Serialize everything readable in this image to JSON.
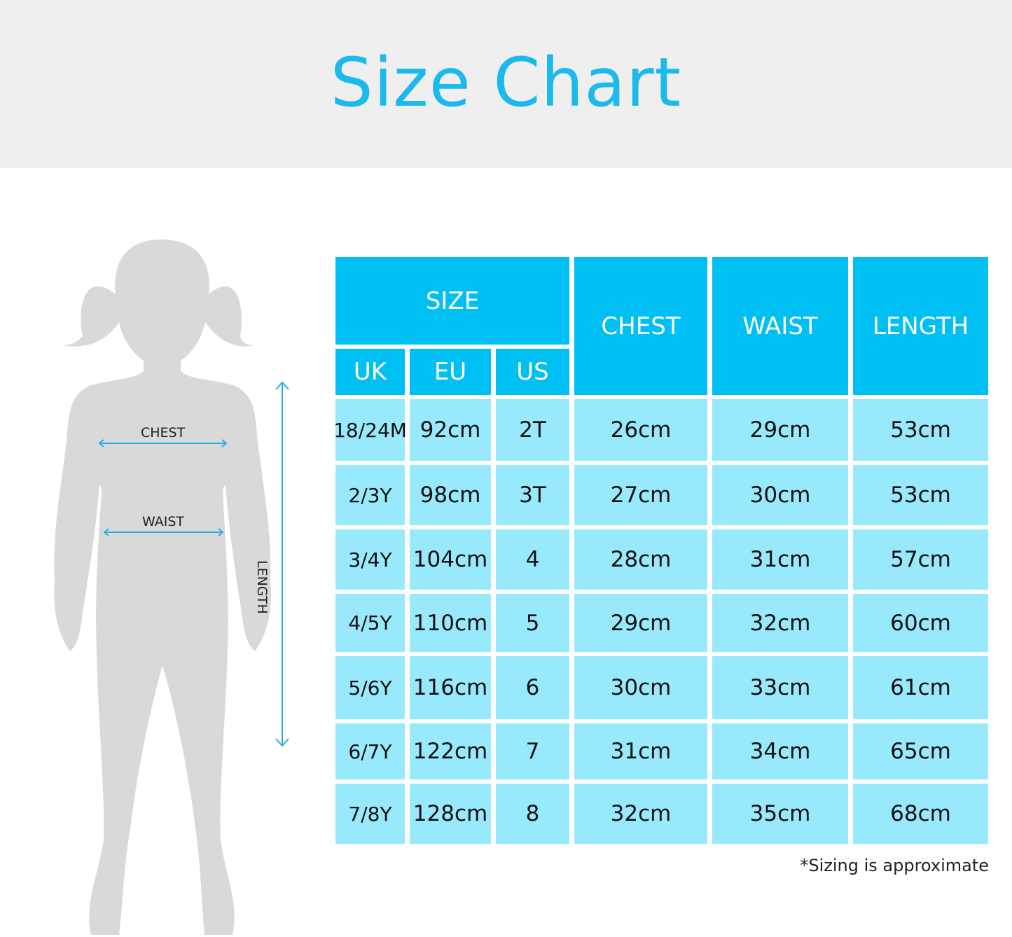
{
  "title": "Size Chart",
  "colors": {
    "title": "#1cb9ec",
    "header": "#00bff3",
    "cell": "#99e9fc",
    "silhouette": "#d9d9da",
    "arrow": "#2aaee0"
  },
  "figure": {
    "chest_label": "CHEST",
    "waist_label": "WAIST",
    "length_label": "LENGTH"
  },
  "table": {
    "group_header": "SIZE",
    "sub_headers": [
      "UK",
      "EU",
      "US"
    ],
    "headers": [
      "CHEST",
      "WAIST",
      "LENGTH"
    ],
    "rows": [
      [
        "18/24M",
        "92cm",
        "2T",
        "26cm",
        "29cm",
        "53cm"
      ],
      [
        "2/3Y",
        "98cm",
        "3T",
        "27cm",
        "30cm",
        "53cm"
      ],
      [
        "3/4Y",
        "104cm",
        "4",
        "28cm",
        "31cm",
        "57cm"
      ],
      [
        "4/5Y",
        "110cm",
        "5",
        "29cm",
        "32cm",
        "60cm"
      ],
      [
        "5/6Y",
        "116cm",
        "6",
        "30cm",
        "33cm",
        "61cm"
      ],
      [
        "6/7Y",
        "122cm",
        "7",
        "31cm",
        "34cm",
        "65cm"
      ],
      [
        "7/8Y",
        "128cm",
        "8",
        "32cm",
        "35cm",
        "68cm"
      ]
    ]
  },
  "note": "*Sizing is approximate"
}
